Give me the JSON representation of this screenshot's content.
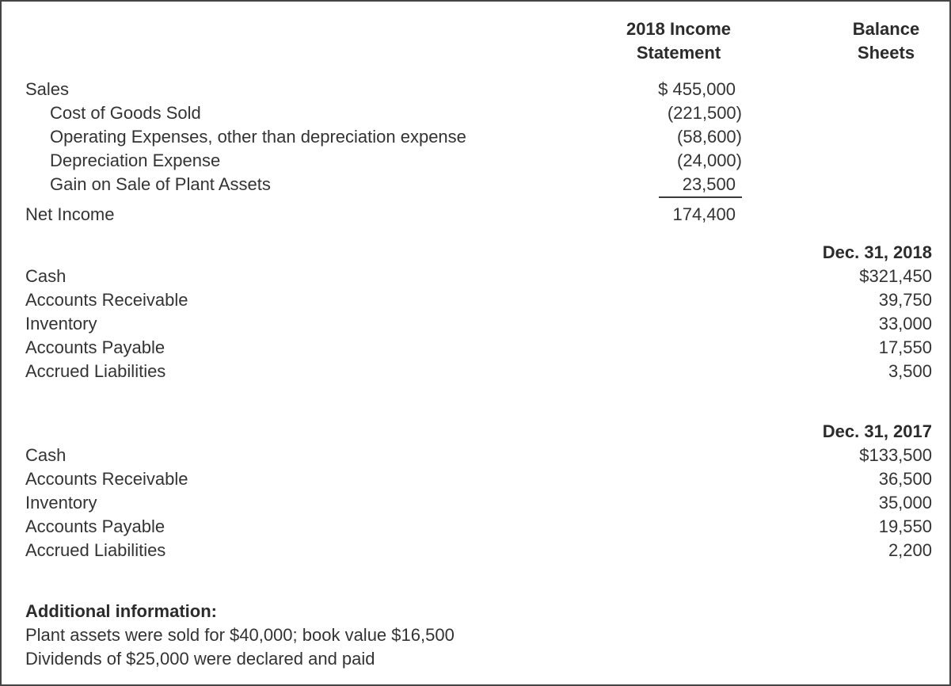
{
  "page": {
    "background": "#ffffff",
    "border_color": "#454545",
    "text_color": "#333333"
  },
  "headers": {
    "income_statement": "2018 Income Statement",
    "balance_sheets": "Balance Sheets"
  },
  "income_statement": {
    "rows": [
      {
        "label": "Sales",
        "value": "$ 455,000",
        "indent": false
      },
      {
        "label": "Cost of Goods Sold",
        "value": "(221,500)",
        "indent": true
      },
      {
        "label": "Operating Expenses, other than depreciation expense",
        "value": "(58,600)",
        "indent": true
      },
      {
        "label": "Depreciation Expense",
        "value": "(24,000)",
        "indent": true
      },
      {
        "label": "Gain on Sale of Plant Assets",
        "value": "23,500",
        "indent": true,
        "underline": true
      },
      {
        "label": "Net Income",
        "value": "174,400",
        "indent": false
      }
    ]
  },
  "balance_sheet_2018": {
    "header": "Dec. 31, 2018",
    "rows": [
      {
        "label": "Cash",
        "value": "$321,450"
      },
      {
        "label": "Accounts Receivable",
        "value": "39,750"
      },
      {
        "label": "Inventory",
        "value": "33,000"
      },
      {
        "label": "Accounts Payable",
        "value": "17,550"
      },
      {
        "label": "Accrued Liabilities",
        "value": "3,500"
      }
    ]
  },
  "balance_sheet_2017": {
    "header": "Dec. 31, 2017",
    "rows": [
      {
        "label": "Cash",
        "value": "$133,500"
      },
      {
        "label": "Accounts Receivable",
        "value": "36,500"
      },
      {
        "label": "Inventory",
        "value": "35,000"
      },
      {
        "label": "Accounts Payable",
        "value": "19,550"
      },
      {
        "label": "Accrued Liabilities",
        "value": "2,200"
      }
    ]
  },
  "additional_information": {
    "heading": "Additional information:",
    "lines": [
      "Plant assets were sold for $40,000; book value $16,500",
      "Dividends of $25,000 were declared and paid"
    ]
  }
}
